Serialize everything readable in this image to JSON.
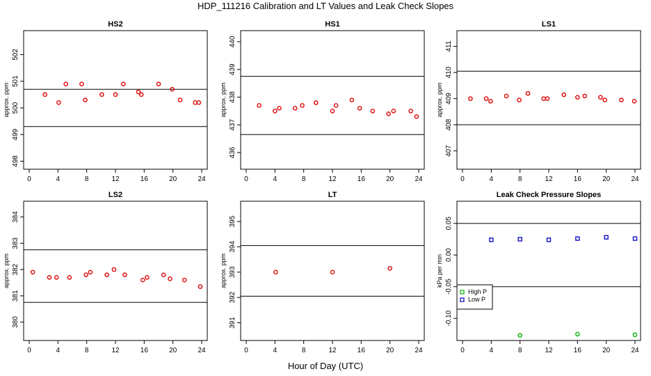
{
  "figure": {
    "title": "HDP_111216  Calibration and LT Values and Leak Check Slopes",
    "xlabel": "Hour of Day (UTC)"
  },
  "colors": {
    "red": "#e00000",
    "green": "#00b000",
    "blue": "#0000c8"
  },
  "chart_data": [
    {
      "type": "scatter",
      "title": "HS2",
      "ylabel": "approx. ppm",
      "xlim": [
        0,
        24
      ],
      "ylim": [
        497.7,
        502.9
      ],
      "xticks": [
        0,
        4,
        8,
        12,
        16,
        20,
        24
      ],
      "yticks": [
        498,
        499,
        500,
        501,
        502
      ],
      "hlines": [
        500.7,
        499.3
      ],
      "series": [
        {
          "color": "red",
          "x": [
            2.2,
            4.1,
            5.1,
            7.3,
            7.8,
            10.1,
            12.0,
            13.1,
            15.2,
            15.6,
            18.0,
            19.9,
            21.0,
            23.1,
            23.6
          ],
          "y": [
            500.5,
            500.2,
            500.9,
            500.9,
            500.3,
            500.5,
            500.5,
            500.9,
            500.6,
            500.5,
            500.9,
            500.7,
            500.3,
            500.2,
            500.2
          ]
        }
      ]
    },
    {
      "type": "scatter",
      "title": "HS1",
      "ylabel": "approx. ppm",
      "xlim": [
        0,
        24
      ],
      "ylim": [
        435.4,
        440.4
      ],
      "xticks": [
        0,
        4,
        8,
        12,
        16,
        20,
        24
      ],
      "yticks": [
        436,
        437,
        438,
        439,
        440
      ],
      "hlines": [
        438.75,
        436.65
      ],
      "series": [
        {
          "color": "red",
          "x": [
            1.8,
            4.0,
            4.6,
            6.8,
            7.8,
            9.7,
            12.0,
            12.5,
            14.7,
            15.8,
            17.6,
            19.8,
            20.5,
            22.9,
            23.7
          ],
          "y": [
            437.7,
            437.5,
            437.6,
            437.6,
            437.7,
            437.8,
            437.5,
            437.7,
            437.9,
            437.6,
            437.5,
            437.4,
            437.5,
            437.5,
            437.3
          ]
        }
      ]
    },
    {
      "type": "scatter",
      "title": "LS1",
      "ylabel": "approx. ppm",
      "xlim": [
        0,
        24
      ],
      "ylim": [
        406.3,
        411.6
      ],
      "xticks": [
        0,
        4,
        8,
        12,
        16,
        20,
        24
      ],
      "yticks": [
        407,
        408,
        409,
        410,
        411
      ],
      "hlines": [
        410.05,
        408.0
      ],
      "series": [
        {
          "color": "red",
          "x": [
            1.1,
            3.3,
            3.9,
            6.1,
            7.9,
            9.1,
            11.3,
            11.8,
            14.1,
            16.0,
            17.0,
            19.2,
            19.8,
            22.1,
            23.9
          ],
          "y": [
            409.0,
            409.0,
            408.9,
            409.1,
            408.95,
            409.2,
            409.0,
            409.0,
            409.15,
            409.05,
            409.1,
            409.05,
            408.95,
            408.95,
            408.9
          ]
        }
      ]
    },
    {
      "type": "scatter",
      "title": "LS2",
      "ylabel": "approx. ppm",
      "xlim": [
        0,
        24
      ],
      "ylim": [
        379.3,
        384.6
      ],
      "xticks": [
        0,
        4,
        8,
        12,
        16,
        20,
        24
      ],
      "yticks": [
        380,
        381,
        382,
        383,
        384
      ],
      "hlines": [
        382.75,
        380.75
      ],
      "series": [
        {
          "color": "red",
          "x": [
            0.5,
            2.8,
            3.8,
            5.6,
            7.9,
            8.5,
            10.8,
            11.8,
            13.3,
            15.8,
            16.4,
            18.7,
            19.6,
            21.6,
            23.8
          ],
          "y": [
            381.9,
            381.7,
            381.7,
            381.7,
            381.8,
            381.9,
            381.8,
            382.0,
            381.8,
            381.6,
            381.7,
            381.8,
            381.65,
            381.6,
            381.35
          ]
        }
      ]
    },
    {
      "type": "scatter",
      "title": "LT",
      "ylabel": "approx. ppm",
      "xlim": [
        0,
        24
      ],
      "ylim": [
        390.3,
        395.8
      ],
      "xticks": [
        0,
        4,
        8,
        12,
        16,
        20,
        24
      ],
      "yticks": [
        391,
        392,
        393,
        394,
        395
      ],
      "hlines": [
        394.05,
        392.05
      ],
      "series": [
        {
          "color": "red",
          "x": [
            4.1,
            12.0,
            20.0
          ],
          "y": [
            393.0,
            393.0,
            393.15
          ]
        }
      ]
    },
    {
      "type": "scatter",
      "title": "Leak Check Pressure Slopes",
      "ylabel": "kPa per min",
      "xlim": [
        0,
        24
      ],
      "ylim": [
        -0.135,
        0.085
      ],
      "xticks": [
        0,
        4,
        8,
        12,
        16,
        20,
        24
      ],
      "yticks": [
        -0.1,
        -0.05,
        0.0,
        0.05
      ],
      "ytick_labels": [
        "-0.10",
        "-0.05",
        "0.00",
        "0.05"
      ],
      "hlines": [
        0.05,
        -0.05
      ],
      "legend": {
        "position": "left",
        "entries": [
          {
            "name": "High P",
            "color": "green"
          },
          {
            "name": "Low P",
            "color": "blue"
          }
        ]
      },
      "series": [
        {
          "name": "High P",
          "color": "green",
          "x": [
            8,
            16,
            24
          ],
          "y": [
            -0.127,
            -0.125,
            -0.126
          ]
        },
        {
          "name": "Low P",
          "color": "blue",
          "x": [
            4,
            8,
            12,
            16,
            20,
            24
          ],
          "y": [
            0.024,
            0.025,
            0.024,
            0.026,
            0.028,
            0.026
          ]
        }
      ]
    }
  ]
}
